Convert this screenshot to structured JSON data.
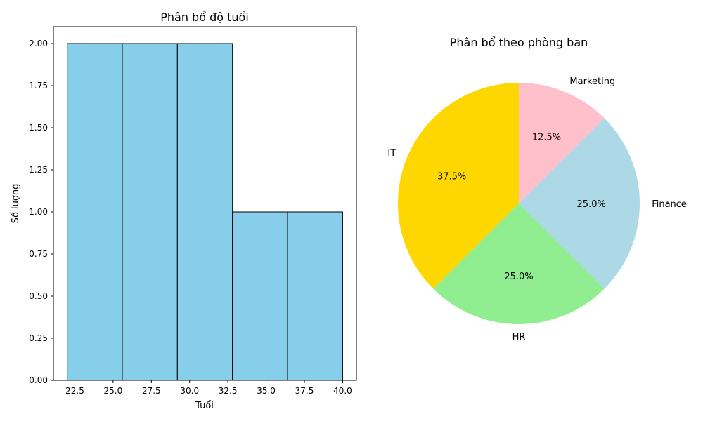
{
  "chart_data": [
    {
      "type": "bar",
      "title": "Phân bổ độ tuổi",
      "xlabel": "Tuổi",
      "ylabel": "Số lượng",
      "bins": [
        {
          "from": 22.0,
          "to": 25.6,
          "count": 2
        },
        {
          "from": 25.6,
          "to": 29.2,
          "count": 2
        },
        {
          "from": 29.2,
          "to": 32.8,
          "count": 2
        },
        {
          "from": 32.8,
          "to": 36.4,
          "count": 1
        },
        {
          "from": 36.4,
          "to": 40.0,
          "count": 1
        }
      ],
      "xlim": [
        21.1,
        40.9
      ],
      "ylim": [
        0,
        2.1
      ],
      "xticks": [
        22.5,
        25.0,
        27.5,
        30.0,
        32.5,
        35.0,
        37.5,
        40.0
      ],
      "xtick_labels": [
        "22.5",
        "25.0",
        "27.5",
        "30.0",
        "32.5",
        "35.0",
        "37.5",
        "40.0"
      ],
      "yticks": [
        0,
        0.25,
        0.5,
        0.75,
        1.0,
        1.25,
        1.5,
        1.75,
        2.0
      ],
      "ytick_labels": [
        "0.00",
        "0.25",
        "0.50",
        "0.75",
        "1.00",
        "1.25",
        "1.50",
        "1.75",
        "2.00"
      ],
      "bar_color": "#87ceeb",
      "edge_color": "#000000",
      "grid": false
    },
    {
      "type": "pie",
      "title": "Phân bổ theo phòng ban",
      "start_angle_deg": 90,
      "slices": [
        {
          "label": "IT",
          "value": 37.5,
          "pct_label": "37.5%",
          "color": "#ffd700"
        },
        {
          "label": "HR",
          "value": 25.0,
          "pct_label": "25.0%",
          "color": "#90ee90"
        },
        {
          "label": "Finance",
          "value": 25.0,
          "pct_label": "25.0%",
          "color": "#add8e6"
        },
        {
          "label": "Marketing",
          "value": 12.5,
          "pct_label": "12.5%",
          "color": "#ffc0cb"
        }
      ]
    }
  ]
}
